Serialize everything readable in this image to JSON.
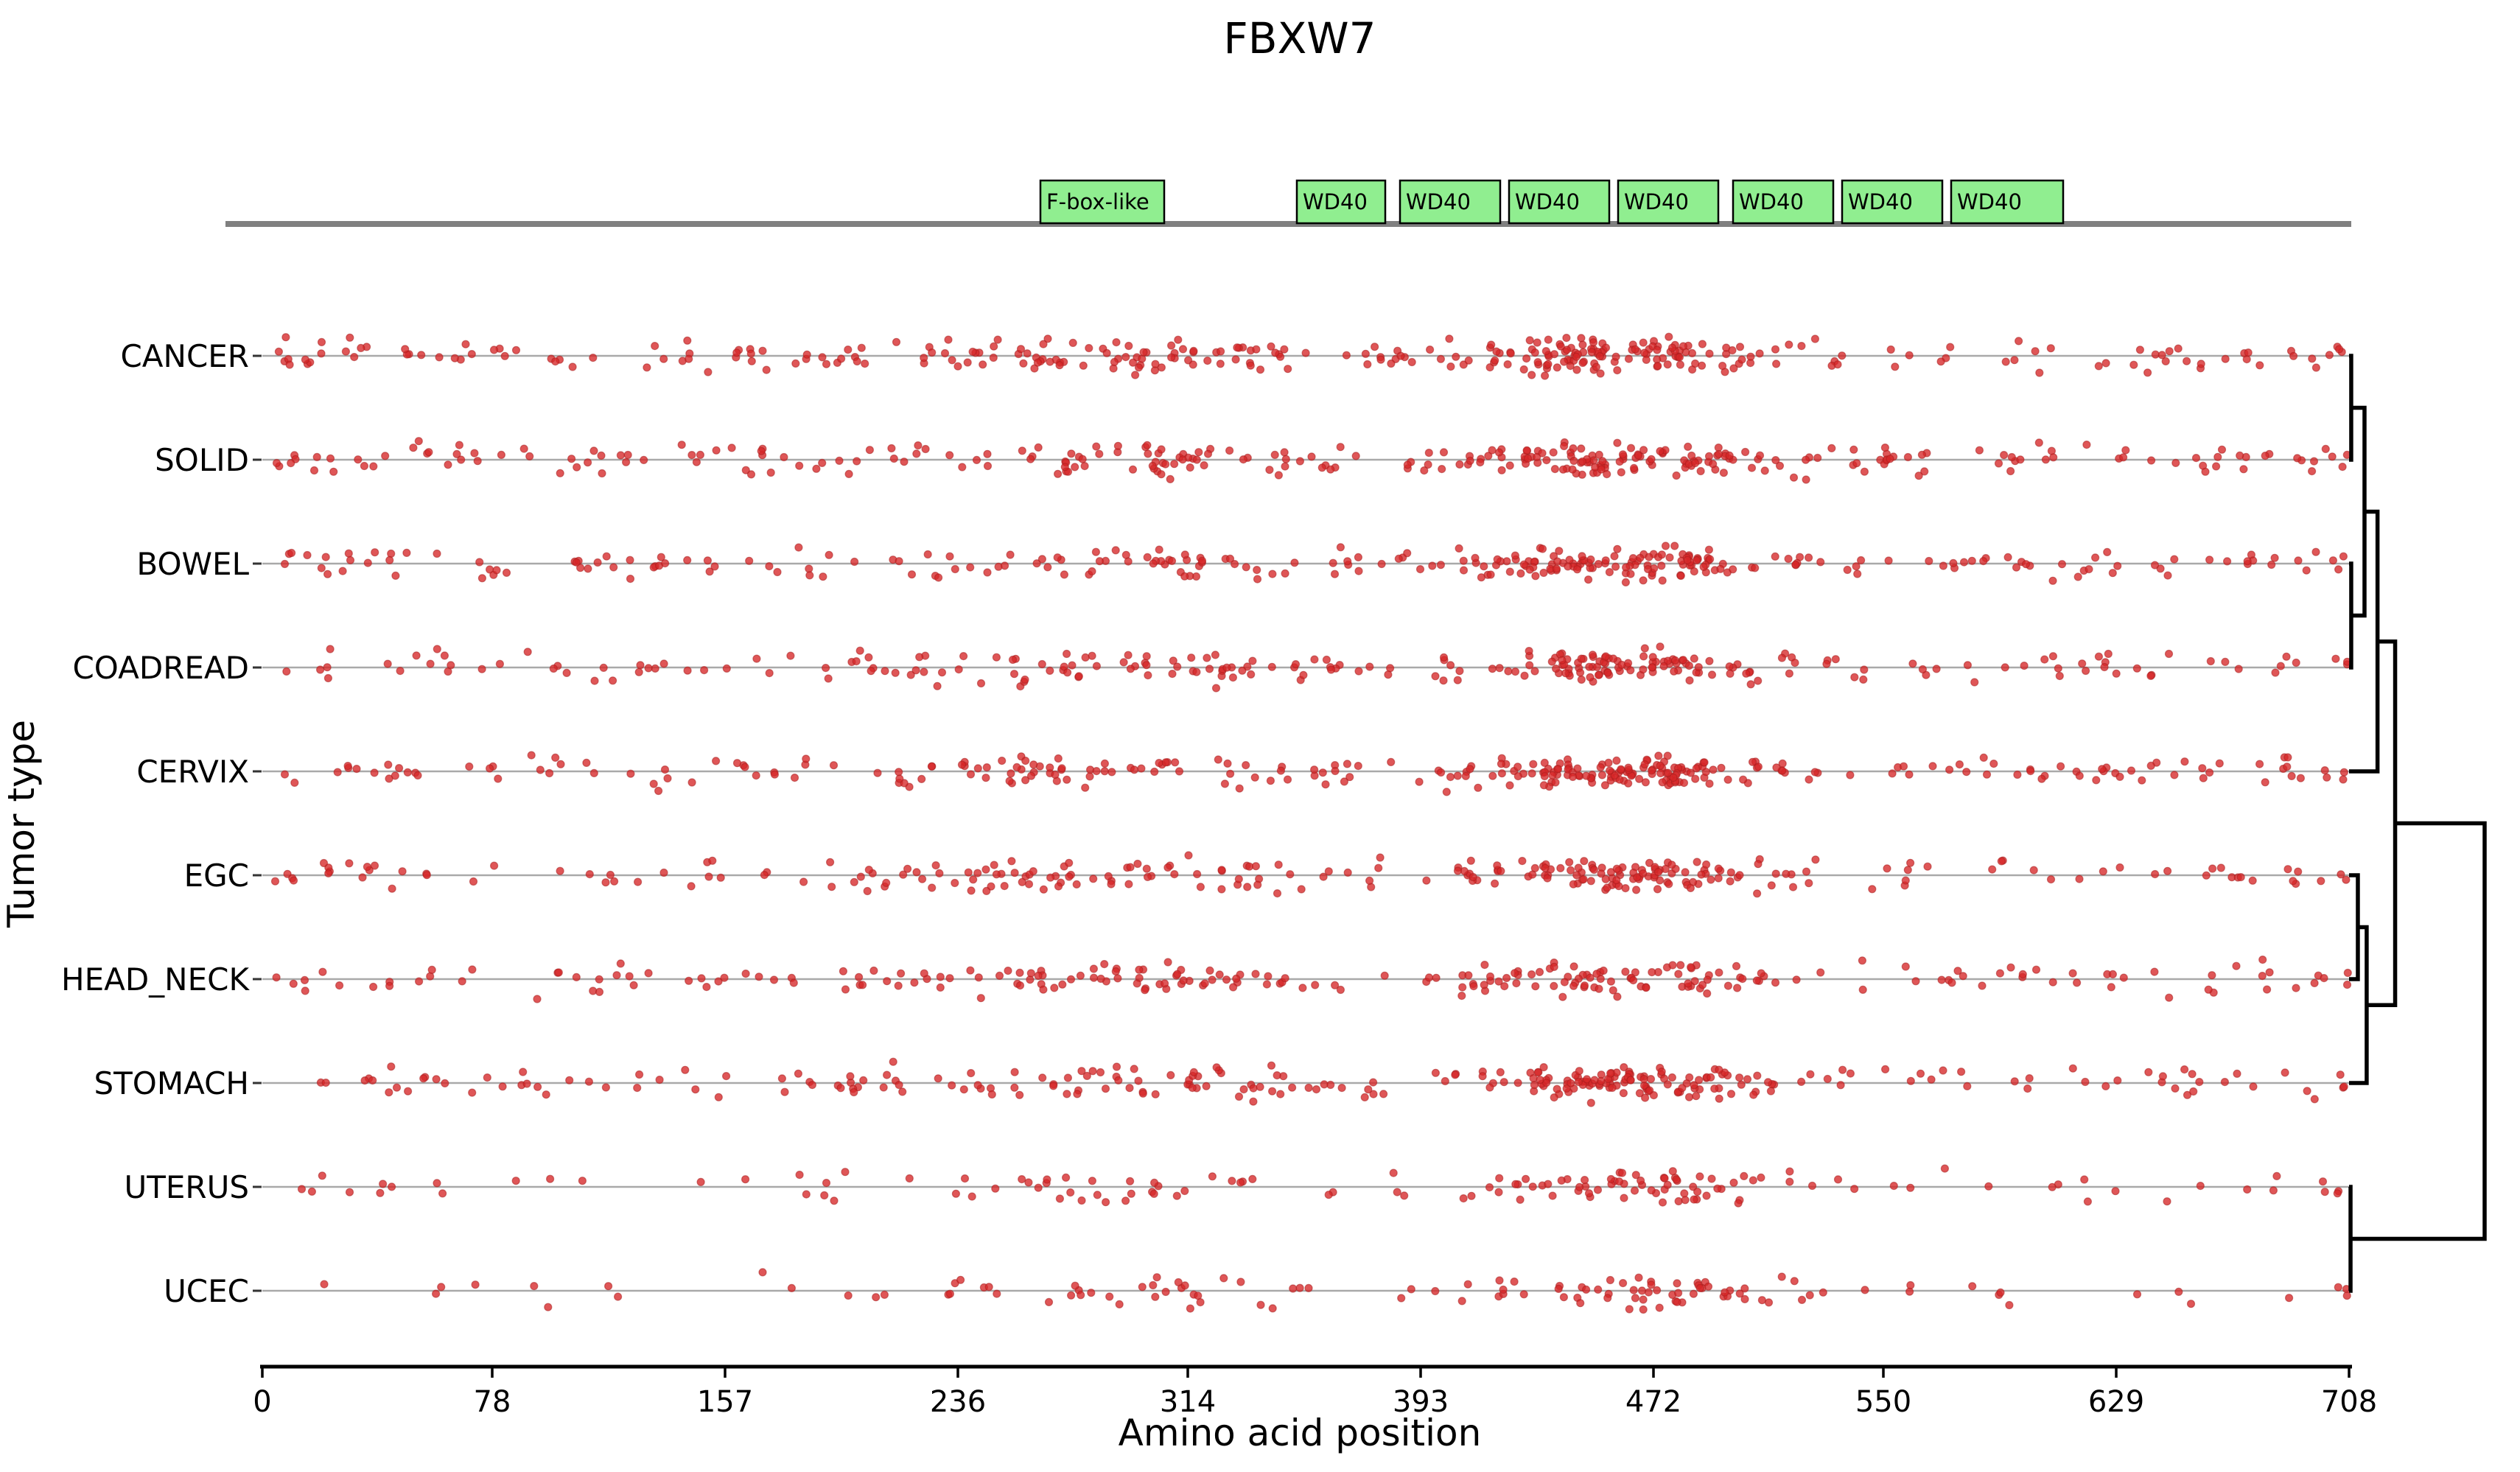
{
  "title": "FBXW7",
  "chart_data": {
    "type": "scatter",
    "subtype": "mutation-jitter-strip-plot-with-dendrogram",
    "xlabel": "Amino acid position",
    "ylabel": "Tumor type",
    "x_range": [
      0,
      708
    ],
    "x_ticks": [
      0,
      78,
      157,
      236,
      314,
      393,
      472,
      550,
      629,
      708
    ],
    "categories": [
      "CANCER",
      "SOLID",
      "BOWEL",
      "COADREAD",
      "CERVIX",
      "EGC",
      "HEAD_NECK",
      "STOMACH",
      "UTERUS",
      "UCEC"
    ],
    "series": [
      {
        "name": "CANCER",
        "n_mutations": 330,
        "end_cluster_dots": 3
      },
      {
        "name": "SOLID",
        "n_mutations": 305,
        "end_cluster_dots": 2
      },
      {
        "name": "BOWEL",
        "n_mutations": 285,
        "end_cluster_dots": 2
      },
      {
        "name": "COADREAD",
        "n_mutations": 260,
        "end_cluster_dots": 2
      },
      {
        "name": "CERVIX",
        "n_mutations": 305,
        "end_cluster_dots": 2
      },
      {
        "name": "EGC",
        "n_mutations": 260,
        "end_cluster_dots": 2
      },
      {
        "name": "HEAD_NECK",
        "n_mutations": 240,
        "end_cluster_dots": 2
      },
      {
        "name": "STOMACH",
        "n_mutations": 275,
        "end_cluster_dots": 3
      },
      {
        "name": "UTERUS",
        "n_mutations": 140,
        "end_cluster_dots": 2
      },
      {
        "name": "UCEC",
        "n_mutations": 120,
        "end_cluster_dots": 3
      }
    ],
    "point_color": "#d62728",
    "point_edge_color": "#a81d1d",
    "row_line_color": "#a9a9a9",
    "protein_track": {
      "backbone_color": "#808080",
      "domain_fill": "#90ee90",
      "domain_border": "#000000",
      "domains": [
        {
          "name": "F-box-like",
          "start": 264,
          "end": 306
        },
        {
          "name": "WD40",
          "start": 351,
          "end": 381
        },
        {
          "name": "WD40",
          "start": 386,
          "end": 420
        },
        {
          "name": "WD40",
          "start": 423,
          "end": 457
        },
        {
          "name": "WD40",
          "start": 460,
          "end": 494
        },
        {
          "name": "WD40",
          "start": 499,
          "end": 533
        },
        {
          "name": "WD40",
          "start": 536,
          "end": 570
        },
        {
          "name": "WD40",
          "start": 573,
          "end": 611
        }
      ]
    },
    "dendrogram": {
      "color": "#000000",
      "tree": {
        "h": 100,
        "children": [
          {
            "h": 34,
            "children": [
              {
                "h": 21,
                "children": [
                  {
                    "h": 11.4,
                    "children": [
                      {
                        "h": 1.6,
                        "children": [
                          "CANCER",
                          "SOLID"
                        ]
                      },
                      {
                        "h": 1.6,
                        "children": [
                          "BOWEL",
                          "COADREAD"
                        ]
                      }
                    ]
                  },
                  "CERVIX"
                ]
              },
              {
                "h": 13,
                "children": [
                  {
                    "h": 6.5,
                    "children": [
                      "EGC",
                      "HEAD_NECK"
                    ]
                  },
                  "STOMACH"
                ]
              }
            ]
          },
          {
            "h": 1.1,
            "children": [
              "UTERUS",
              "UCEC"
            ]
          }
        ]
      }
    }
  }
}
